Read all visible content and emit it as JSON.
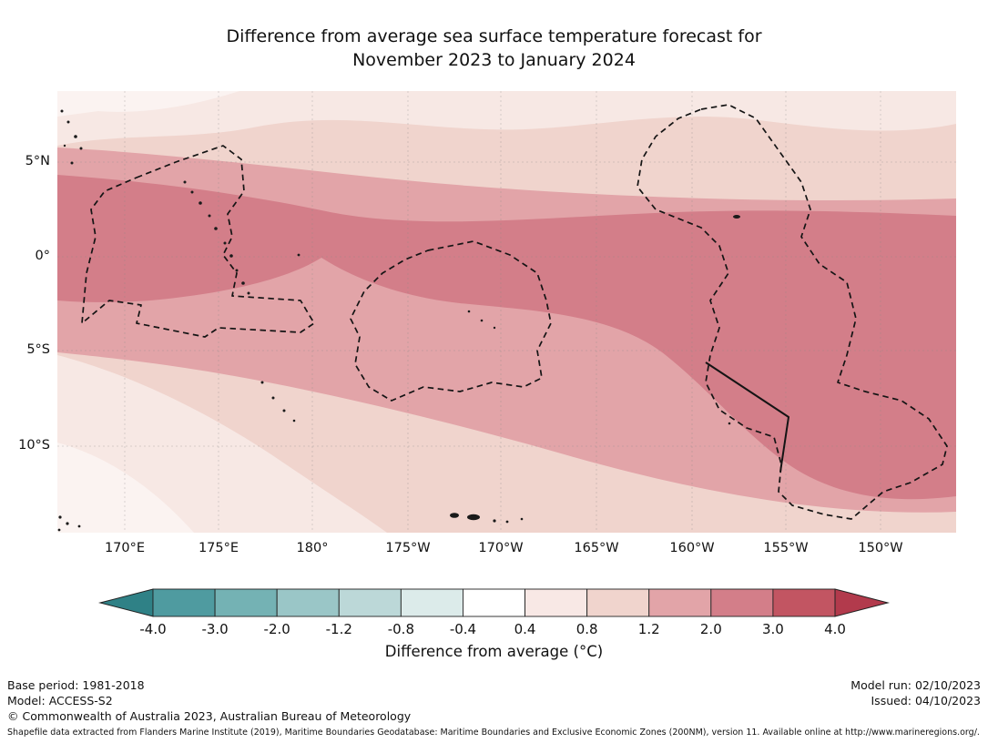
{
  "title": {
    "line1": "Difference from average sea surface temperature forecast for",
    "line2": "November 2023 to January 2024"
  },
  "chart_data": {
    "type": "heatmap",
    "subtype": "filled-contour-forecast-map",
    "region": "Tropical Pacific around the Date Line",
    "x_axis": {
      "ticks": [
        "170°E",
        "175°E",
        "180°",
        "175°W",
        "170°W",
        "165°W",
        "160°W",
        "155°W",
        "150°W"
      ]
    },
    "y_axis": {
      "ticks": [
        "5°N",
        "0°",
        "5°S",
        "10°S"
      ]
    },
    "colorbar": {
      "label": "Difference from average (°C)",
      "tick_labels": [
        "-4.0",
        "-3.0",
        "-2.0",
        "-1.2",
        "-0.8",
        "-0.4",
        "0.4",
        "0.8",
        "1.2",
        "2.0",
        "3.0",
        "4.0"
      ],
      "segment_colors": [
        "#4f9ba0",
        "#74b2b4",
        "#9ac6c7",
        "#bcd8d8",
        "#dcebea",
        "#ffffff",
        "#f8e8e5",
        "#f0d4cd",
        "#e2a4a8",
        "#d37e89",
        "#c25562"
      ],
      "under_color": "#2f8186",
      "over_color": "#b23a4c"
    },
    "palette": {
      "band_neutral": "#fbf3f1",
      "band_04_08": "#f7e8e4",
      "band_08_12": "#f0d4cd",
      "band_12_20": "#e2a4a8",
      "band_20_30": "#d37e89"
    },
    "map_features": {
      "boundaries": "Dashed lines mark Exclusive Economic Zone boundaries (Gilbert, Phoenix and Line Islands groups); short solid segment on the Line Islands western boundary",
      "anomaly_summary": "Positive SST anomalies of +0.4 to +3.0 °C everywhere shown; strongest band (+2.0 to +3.0 °C) lies along the equator, weakest (+0.4 to +0.8 °C) in the far south-west and along the northern edge"
    }
  },
  "footer": {
    "base_period": "Base period: 1981-2018",
    "model": "Model: ACCESS-S2",
    "copyright": "© Commonwealth of Australia 2023, Australian Bureau of Meteorology",
    "model_run": "Model run: 02/10/2023",
    "issued": "Issued: 04/10/2023",
    "attribution": "Shapefile data extracted from Flanders Marine Institute (2019), Maritime Boundaries Geodatabase: Maritime Boundaries and Exclusive Economic Zones (200NM), version 11. Available online at http://www.marineregions.org/."
  }
}
